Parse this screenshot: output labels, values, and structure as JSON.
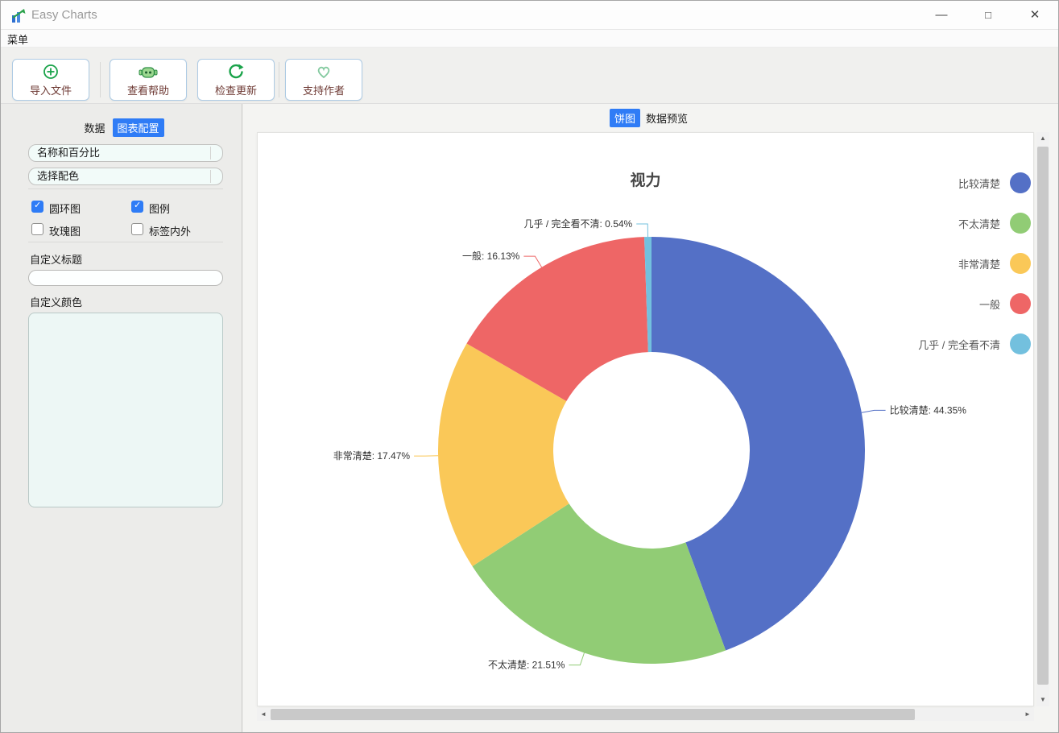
{
  "theme": {
    "accent_blue": "#2f7cf6",
    "icon_green": "#1aa34a",
    "button_label_color": "#6e3a34"
  },
  "window": {
    "title": "Easy Charts",
    "controls": {
      "minimize": "—",
      "maximize": "□",
      "close": "✕"
    }
  },
  "menu": {
    "label": "菜单"
  },
  "toolbar": {
    "buttons": [
      {
        "label": "导入文件",
        "icon": "import-file-icon"
      },
      {
        "label": "查看帮助",
        "icon": "help-robot-icon"
      },
      {
        "label": "检查更新",
        "icon": "check-update-icon"
      },
      {
        "label": "支持作者",
        "icon": "support-author-heart-icon"
      }
    ]
  },
  "sidebar": {
    "tabs": [
      {
        "label": "数据",
        "active": false
      },
      {
        "label": "图表配置",
        "active": true
      }
    ],
    "dropdowns": [
      {
        "value": "名称和百分比"
      },
      {
        "value": "选择配色"
      }
    ],
    "checkboxes": [
      {
        "label": "圆环图",
        "checked": true
      },
      {
        "label": "图例",
        "checked": true
      },
      {
        "label": "玫瑰图",
        "checked": false
      },
      {
        "label": "标签内外",
        "checked": false
      }
    ],
    "custom_title": {
      "label": "自定义标题",
      "value": ""
    },
    "custom_colors": {
      "label": "自定义颜色",
      "value": ""
    }
  },
  "main": {
    "tabs": [
      {
        "label": "饼图",
        "active": true
      },
      {
        "label": "数据预览",
        "active": false
      }
    ]
  },
  "chart_data": {
    "type": "pie",
    "donut": true,
    "title": "视力",
    "categories": [
      "比较清楚",
      "不太清楚",
      "非常清楚",
      "一般",
      "几乎 / 完全看不清"
    ],
    "values": [
      44.35,
      21.51,
      17.47,
      16.13,
      0.54
    ],
    "labels": [
      "比较清楚: 44.35%",
      "不太清楚: 21.51%",
      "非常清楚: 17.47%",
      "一般: 16.13%",
      "几乎 / 完全看不清: 0.54%"
    ],
    "colors": [
      "#5470c6",
      "#91cc75",
      "#fac858",
      "#ee6666",
      "#73c0de"
    ],
    "legend_position": "right",
    "start_angle_deg": 0,
    "clockwise": true,
    "outer_radius_px": 265,
    "inner_radius_px": 122
  }
}
